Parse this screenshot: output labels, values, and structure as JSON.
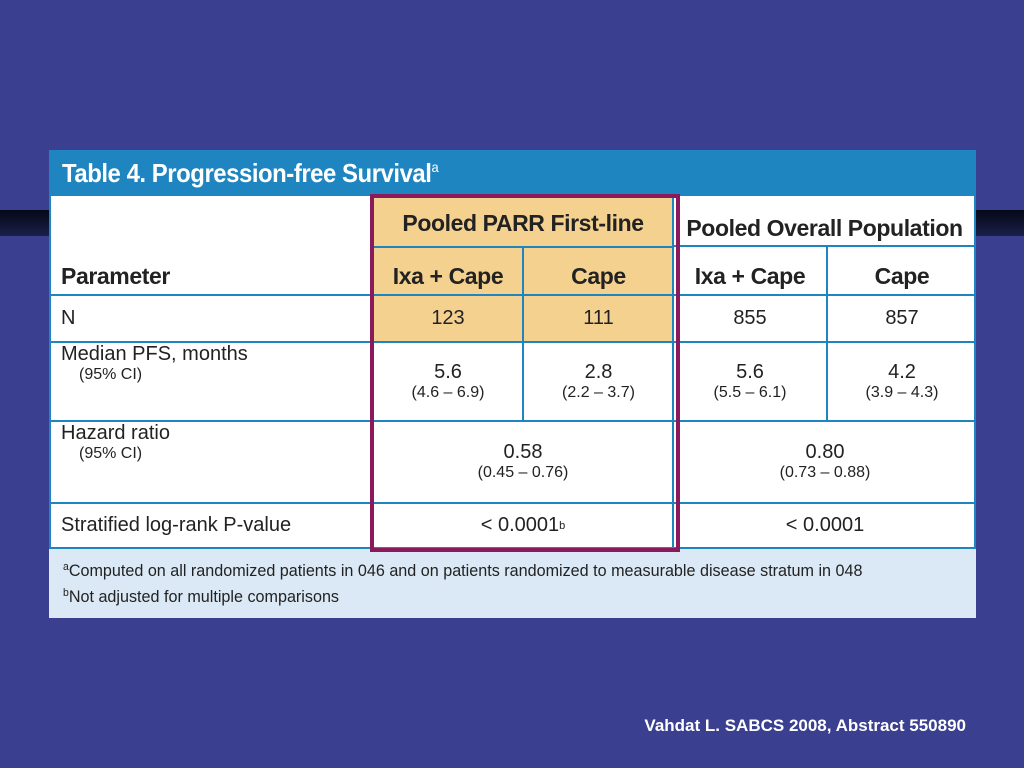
{
  "table": {
    "title": "Table 4. Progression-free Survival",
    "title_marker": "a",
    "group_headers": {
      "pooled_parr": "Pooled PARR First-line",
      "pooled_overall": "Pooled Overall Population"
    },
    "parameter_header": "Parameter",
    "columns": [
      "Ixa + Cape",
      "Cape",
      "Ixa + Cape",
      "Cape"
    ],
    "rows": {
      "n": {
        "label": "N",
        "values": [
          "123",
          "111",
          "855",
          "857"
        ]
      },
      "median_pfs": {
        "label": "Median PFS, months",
        "sublabel": "(95% CI)",
        "values": [
          "5.6",
          "2.8",
          "5.6",
          "4.2"
        ],
        "ci": [
          "(4.6 – 6.9)",
          "(2.2 – 3.7)",
          "(5.5 – 6.1)",
          "(3.9 – 4.3)"
        ]
      },
      "hazard_ratio": {
        "label": "Hazard ratio",
        "sublabel": "(95% CI)",
        "values": [
          "0.58",
          "0.80"
        ],
        "ci": [
          "(0.45 – 0.76)",
          "(0.73 – 0.88)"
        ]
      },
      "p_value": {
        "label": "Stratified log-rank P-value",
        "values": [
          "< 0.0001",
          "< 0.0001"
        ],
        "marker": "b"
      }
    },
    "footnotes": [
      {
        "marker": "a",
        "text": "Computed on all randomized patients in 046 and on patients randomized to measurable disease stratum in 048"
      },
      {
        "marker": "b",
        "text": "Not adjusted for multiple comparisons"
      }
    ]
  },
  "citation": "Vahdat L. SABCS 2008, Abstract 550890",
  "colors": {
    "background": "#3a3f8f",
    "title_bar": "#1f85c0",
    "highlight": "#f5d190",
    "frame": "#8a1a5c",
    "footer": "#dae9f5"
  }
}
